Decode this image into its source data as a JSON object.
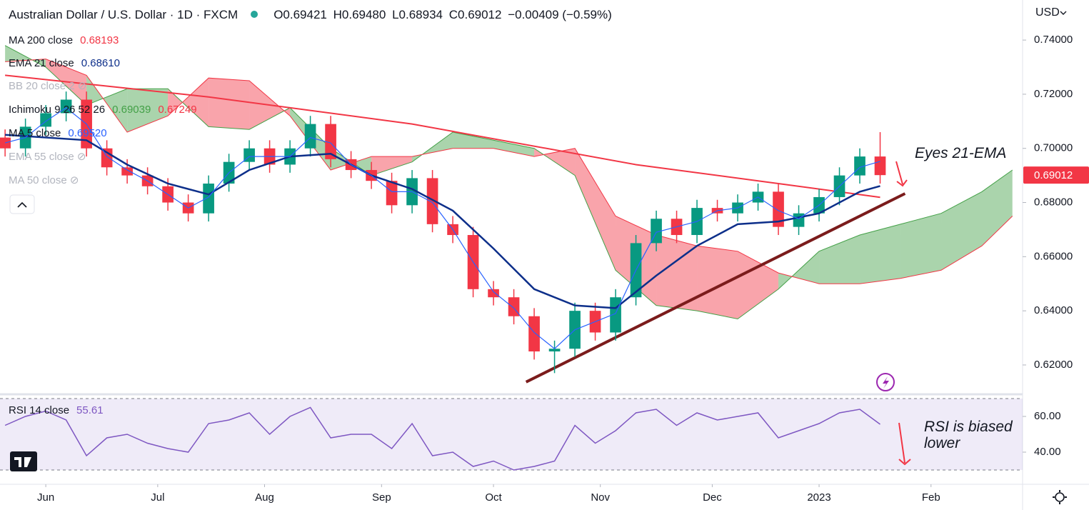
{
  "header": {
    "title": "Australian Dollar / U.S. Dollar · 1D · FXCM",
    "ohlc": [
      {
        "key": "O",
        "value": "0.69421"
      },
      {
        "key": "H",
        "value": "0.69480"
      },
      {
        "key": "L",
        "value": "0.68934"
      },
      {
        "key": "C",
        "value": "0.69012"
      }
    ],
    "change": "−0.00409 (−0.59%)",
    "currency": "USD"
  },
  "hidden_indicators": [
    "BB 20 close 2",
    "EMA 55 close",
    "MA 50 close"
  ],
  "chart_data": [
    {
      "type": "candlestick",
      "x": [
        -8,
        -4,
        0,
        4,
        8,
        12,
        16,
        20,
        24,
        28,
        32,
        36,
        40,
        44,
        48,
        52,
        56,
        60,
        64,
        68,
        72,
        76,
        80,
        84,
        88,
        92,
        96,
        100,
        104,
        108,
        112,
        116,
        120,
        124,
        128,
        132,
        136,
        140,
        144,
        148,
        152,
        156,
        160,
        164
      ],
      "open": [
        0.704,
        0.7,
        0.708,
        0.713,
        0.718,
        0.7,
        0.693,
        0.69,
        0.686,
        0.68,
        0.676,
        0.687,
        0.695,
        0.7,
        0.694,
        0.7,
        0.709,
        0.696,
        0.692,
        0.688,
        0.679,
        0.689,
        0.672,
        0.668,
        0.648,
        0.645,
        0.638,
        0.625,
        0.626,
        0.64,
        0.632,
        0.645,
        0.665,
        0.674,
        0.668,
        0.678,
        0.676,
        0.68,
        0.684,
        0.671,
        0.676,
        0.682,
        0.69,
        0.697
      ],
      "high": [
        0.707,
        0.711,
        0.716,
        0.721,
        0.721,
        0.703,
        0.696,
        0.693,
        0.689,
        0.683,
        0.69,
        0.698,
        0.703,
        0.703,
        0.703,
        0.712,
        0.712,
        0.699,
        0.695,
        0.691,
        0.692,
        0.692,
        0.675,
        0.671,
        0.651,
        0.648,
        0.641,
        0.629,
        0.643,
        0.643,
        0.648,
        0.668,
        0.677,
        0.677,
        0.681,
        0.681,
        0.683,
        0.687,
        0.687,
        0.679,
        0.685,
        0.693,
        0.7,
        0.706
      ],
      "low": [
        0.697,
        0.697,
        0.705,
        0.71,
        0.697,
        0.69,
        0.687,
        0.683,
        0.677,
        0.673,
        0.673,
        0.684,
        0.692,
        0.691,
        0.691,
        0.697,
        0.693,
        0.689,
        0.685,
        0.676,
        0.676,
        0.669,
        0.665,
        0.645,
        0.642,
        0.635,
        0.622,
        0.617,
        0.623,
        0.629,
        0.629,
        0.642,
        0.662,
        0.665,
        0.665,
        0.673,
        0.673,
        0.677,
        0.668,
        0.668,
        0.673,
        0.679,
        0.687,
        0.687
      ],
      "close": [
        0.7,
        0.708,
        0.713,
        0.718,
        0.7,
        0.693,
        0.69,
        0.686,
        0.68,
        0.676,
        0.687,
        0.695,
        0.7,
        0.694,
        0.7,
        0.709,
        0.696,
        0.692,
        0.688,
        0.679,
        0.689,
        0.672,
        0.668,
        0.648,
        0.645,
        0.638,
        0.625,
        0.626,
        0.64,
        0.632,
        0.645,
        0.665,
        0.674,
        0.668,
        0.678,
        0.676,
        0.68,
        0.684,
        0.671,
        0.676,
        0.682,
        0.69,
        0.697,
        0.69012
      ],
      "up_color": "#089981",
      "down_color": "#f23645",
      "series": [
        {
          "name": "MA 200 close",
          "legend_value": "0.68193",
          "color": "#f23645",
          "x": [
            -8,
            32,
            72,
            116,
            144,
            164
          ],
          "values": [
            0.727,
            0.719,
            0.709,
            0.694,
            0.687,
            0.68193
          ]
        },
        {
          "name": "EMA 21 close",
          "legend_value": "0.68610",
          "color": "#0d2f8a",
          "x": [
            -8,
            8,
            16,
            24,
            32,
            40,
            48,
            56,
            64,
            72,
            80,
            88,
            96,
            104,
            112,
            120,
            128,
            136,
            144,
            152,
            160,
            164
          ],
          "values": [
            0.705,
            0.703,
            0.694,
            0.687,
            0.683,
            0.692,
            0.697,
            0.698,
            0.69,
            0.685,
            0.677,
            0.663,
            0.648,
            0.642,
            0.641,
            0.653,
            0.664,
            0.672,
            0.673,
            0.676,
            0.684,
            0.6861
          ]
        },
        {
          "name": "MA 5 close",
          "legend_value": "0.69520",
          "color": "#2962ff",
          "x": [
            -8,
            -4,
            0,
            4,
            8,
            12,
            16,
            20,
            24,
            28,
            32,
            36,
            40,
            44,
            48,
            52,
            56,
            60,
            64,
            68,
            72,
            76,
            80,
            84,
            88,
            92,
            96,
            100,
            104,
            108,
            112,
            116,
            120,
            124,
            128,
            132,
            136,
            140,
            144,
            148,
            152,
            156,
            160,
            164
          ],
          "values": [
            0.702,
            0.704,
            0.71,
            0.715,
            0.709,
            0.697,
            0.692,
            0.688,
            0.683,
            0.678,
            0.682,
            0.691,
            0.697,
            0.697,
            0.697,
            0.704,
            0.702,
            0.694,
            0.69,
            0.684,
            0.684,
            0.68,
            0.67,
            0.658,
            0.647,
            0.641,
            0.632,
            0.626,
            0.633,
            0.636,
            0.639,
            0.655,
            0.669,
            0.671,
            0.673,
            0.677,
            0.678,
            0.682,
            0.677,
            0.674,
            0.679,
            0.686,
            0.693,
            0.6952
          ]
        }
      ],
      "cloud": {
        "name": "Ichimoku 9 26 52 26",
        "legend_values": [
          "0.69039",
          "0.67249"
        ],
        "span_a_color": "#43a047",
        "span_b_color": "#f23645",
        "x": [
          -8,
          0,
          8,
          16,
          24,
          32,
          40,
          48,
          56,
          64,
          72,
          80,
          88,
          96,
          104,
          112,
          120,
          128,
          136,
          144,
          152,
          160,
          168,
          176,
          184,
          190
        ],
        "span_a": [
          0.738,
          0.73,
          0.716,
          0.722,
          0.722,
          0.708,
          0.707,
          0.715,
          0.7,
          0.69,
          0.695,
          0.706,
          0.703,
          0.7,
          0.69,
          0.655,
          0.642,
          0.64,
          0.637,
          0.648,
          0.662,
          0.668,
          0.672,
          0.676,
          0.684,
          0.692
        ],
        "span_b": [
          0.732,
          0.733,
          0.727,
          0.706,
          0.712,
          0.726,
          0.725,
          0.712,
          0.692,
          0.697,
          0.697,
          0.7,
          0.7,
          0.697,
          0.7,
          0.675,
          0.668,
          0.664,
          0.662,
          0.654,
          0.65,
          0.65,
          0.652,
          0.655,
          0.664,
          0.675
        ]
      },
      "trendline": {
        "x": [
          94.4,
          168.9
        ],
        "values": [
          0.6137,
          0.6833
        ],
        "color": "#7b1c1c"
      },
      "annotations": [
        "Eyes 21-EMA"
      ],
      "xlim": [
        -9,
        192
      ],
      "xticks": [
        {
          "value": 0,
          "label": "Jun"
        },
        {
          "value": 22,
          "label": "Jul"
        },
        {
          "value": 43,
          "label": "Aug"
        },
        {
          "value": 66,
          "label": "Sep"
        },
        {
          "value": 88,
          "label": "Oct"
        },
        {
          "value": 109,
          "label": "Nov"
        },
        {
          "value": 131,
          "label": "Dec"
        },
        {
          "value": 152,
          "label": "2023"
        },
        {
          "value": 174,
          "label": "Feb"
        }
      ],
      "ylim": [
        0.6097,
        0.7548
      ],
      "yticks": [
        {
          "value": 0.62,
          "label": "0.62000"
        },
        {
          "value": 0.64,
          "label": "0.64000"
        },
        {
          "value": 0.66,
          "label": "0.66000"
        },
        {
          "value": 0.68,
          "label": "0.68000"
        },
        {
          "value": 0.7,
          "label": "0.70000"
        },
        {
          "value": 0.72,
          "label": "0.72000"
        },
        {
          "value": 0.74,
          "label": "0.74000"
        }
      ],
      "grid": false
    },
    {
      "type": "line",
      "series": [
        {
          "name": "RSI 14 close",
          "color": "#7e57c2",
          "x": [
            -8,
            -4,
            0,
            4,
            8,
            12,
            16,
            20,
            24,
            28,
            32,
            36,
            40,
            44,
            48,
            52,
            56,
            60,
            64,
            68,
            72,
            76,
            80,
            84,
            88,
            92,
            96,
            100,
            104,
            108,
            112,
            116,
            120,
            124,
            128,
            132,
            136,
            140,
            144,
            148,
            152,
            156,
            160,
            164
          ],
          "values": [
            55,
            60,
            63,
            58,
            38,
            48,
            50,
            45,
            42,
            40,
            56,
            58,
            62,
            50,
            60,
            65,
            48,
            50,
            50,
            42,
            56,
            38,
            40,
            32,
            35,
            30,
            32,
            35,
            55,
            45,
            52,
            62,
            64,
            55,
            62,
            58,
            60,
            62,
            48,
            52,
            56,
            62,
            64,
            55.61
          ]
        }
      ],
      "band": [
        30,
        70
      ],
      "annotations": [
        "RSI is biased lower"
      ],
      "xlim": [
        -9,
        192
      ],
      "ylim": [
        22.4,
        72
      ],
      "yticks": [
        {
          "value": 40,
          "label": "40.00"
        },
        {
          "value": 60,
          "label": "60.00"
        }
      ]
    }
  ]
}
